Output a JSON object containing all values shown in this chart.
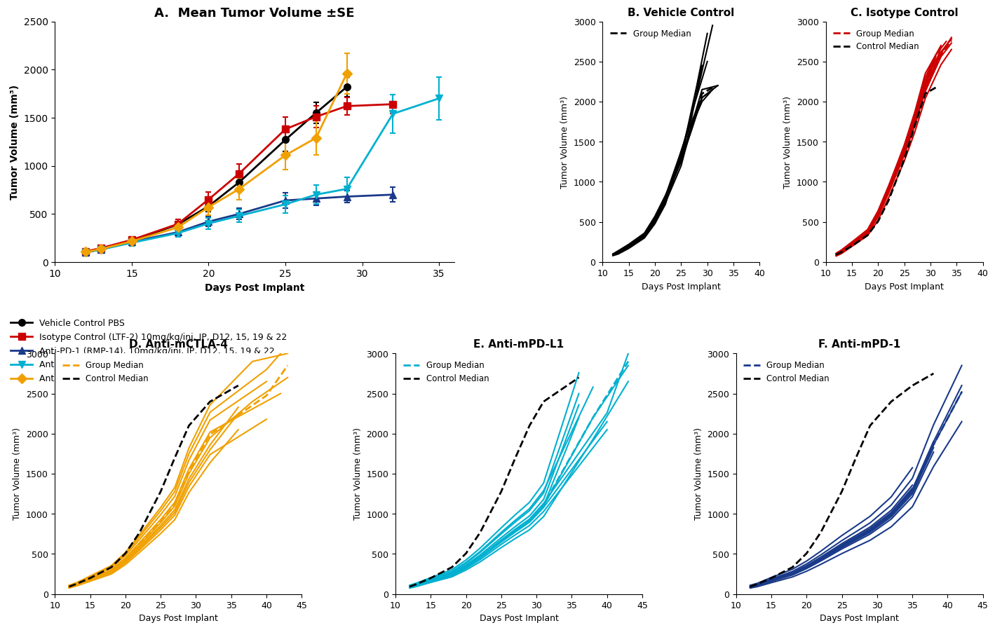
{
  "title_A": "A.  Mean Tumor Volume ±SE",
  "title_B": "B. Vehicle Control",
  "title_C": "C. Isotype Control",
  "title_D": "D. Anti-mCTLA-4",
  "title_E": "E. Anti-mPD-L1",
  "title_F": "F. Anti-mPD-1",
  "xlabel": "Days Post Implant",
  "ylabel": "Tumor Volume (mm³)",
  "colors": {
    "vehicle": "#000000",
    "isotype": "#cc0000",
    "pd1": "#1a3a8a",
    "pdl1": "#00b0d0",
    "ctla4": "#f0a000"
  },
  "mean_days": [
    12,
    13,
    15,
    18,
    20,
    22,
    25,
    27,
    29,
    32,
    35
  ],
  "mean_vehicle": [
    100,
    140,
    220,
    390,
    580,
    830,
    1270,
    1550,
    1820,
    null,
    null
  ],
  "mean_vehicle_se": [
    15,
    20,
    25,
    35,
    60,
    80,
    120,
    110,
    100,
    null,
    null
  ],
  "mean_isotype": [
    110,
    145,
    230,
    395,
    650,
    920,
    1380,
    1510,
    1620,
    1640,
    null
  ],
  "mean_isotype_se": [
    20,
    25,
    30,
    50,
    80,
    100,
    130,
    110,
    90,
    100,
    null
  ],
  "mean_pd1": [
    100,
    130,
    210,
    310,
    420,
    500,
    640,
    660,
    680,
    700,
    null
  ],
  "mean_pd1_se": [
    15,
    20,
    25,
    35,
    50,
    60,
    80,
    70,
    65,
    75,
    null
  ],
  "mean_pdl1": [
    100,
    130,
    200,
    300,
    400,
    480,
    600,
    700,
    760,
    1540,
    1700
  ],
  "mean_pdl1_se": [
    15,
    20,
    30,
    40,
    55,
    65,
    90,
    100,
    120,
    200,
    220
  ],
  "mean_ctla4": [
    105,
    135,
    215,
    360,
    570,
    760,
    1110,
    1290,
    1960,
    null,
    null
  ],
  "mean_ctla4_se": [
    20,
    25,
    35,
    55,
    80,
    110,
    150,
    180,
    210,
    null,
    null
  ],
  "vehicle_individual_x": [
    [
      12,
      13,
      15,
      18,
      20,
      22,
      25,
      27,
      28,
      30
    ],
    [
      12,
      13,
      15,
      18,
      20,
      22,
      25,
      26,
      28,
      31
    ],
    [
      12,
      13,
      15,
      18,
      20,
      22,
      25,
      27,
      29
    ],
    [
      12,
      13,
      15,
      18,
      20,
      22,
      25,
      27,
      29,
      32
    ],
    [
      12,
      13,
      15,
      18,
      20,
      22,
      25,
      27,
      29,
      32
    ],
    [
      12,
      13,
      15,
      18,
      20,
      22,
      25,
      27,
      29,
      31
    ],
    [
      12,
      13,
      15,
      18,
      20,
      22,
      25,
      27,
      30
    ],
    [
      12,
      13,
      15,
      18,
      20,
      22,
      25,
      26,
      27,
      29,
      31
    ],
    [
      12,
      13,
      15,
      18,
      20,
      22,
      24,
      25,
      27,
      29
    ]
  ],
  "vehicle_individual_y": [
    [
      80,
      100,
      170,
      300,
      480,
      750,
      1300,
      1900,
      2200,
      2850
    ],
    [
      90,
      120,
      200,
      340,
      520,
      800,
      1350,
      1600,
      2100,
      2950
    ],
    [
      95,
      130,
      210,
      350,
      550,
      820,
      1380,
      1800,
      2450
    ],
    [
      100,
      140,
      220,
      360,
      570,
      830,
      1250,
      1650,
      2050,
      2200
    ],
    [
      85,
      115,
      185,
      310,
      490,
      740,
      1200,
      1700,
      2150,
      2200
    ],
    [
      90,
      120,
      195,
      320,
      500,
      760,
      1280,
      1650,
      2050,
      2150
    ],
    [
      95,
      130,
      205,
      330,
      510,
      770,
      1300,
      1850,
      2500
    ],
    [
      100,
      135,
      215,
      350,
      530,
      790,
      1260,
      1500,
      1700,
      2000,
      2150
    ],
    [
      88,
      118,
      190,
      310,
      480,
      720,
      1150,
      1380,
      1750,
      2050
    ]
  ],
  "vehicle_median_x": [
    12,
    13,
    15,
    18,
    20,
    22,
    25,
    27,
    29,
    31
  ],
  "vehicle_median_y": [
    92,
    125,
    200,
    335,
    508,
    768,
    1280,
    1700,
    2100,
    2175
  ],
  "isotype_individual_x": [
    [
      12,
      13,
      15,
      18,
      20,
      22,
      25,
      27,
      29,
      32,
      34
    ],
    [
      12,
      13,
      15,
      18,
      20,
      22,
      25,
      27,
      29,
      31,
      33
    ],
    [
      12,
      13,
      15,
      18,
      20,
      22,
      25,
      27,
      29,
      32
    ],
    [
      12,
      13,
      15,
      18,
      20,
      22,
      25,
      27,
      29,
      32,
      34
    ],
    [
      12,
      13,
      15,
      18,
      20,
      22,
      25,
      27,
      29,
      31
    ],
    [
      12,
      13,
      15,
      18,
      20,
      22,
      25,
      27,
      29,
      32,
      34
    ],
    [
      12,
      13,
      15,
      18,
      20,
      22,
      25,
      27,
      30,
      32
    ],
    [
      12,
      13,
      15,
      18,
      20,
      22,
      25,
      27,
      29,
      31,
      33
    ],
    [
      12,
      13,
      15,
      18,
      20,
      22,
      25,
      27,
      29,
      32,
      34
    ],
    [
      12,
      13,
      15,
      18,
      20,
      22,
      25,
      27,
      29,
      31
    ]
  ],
  "isotype_individual_y": [
    [
      80,
      110,
      200,
      360,
      560,
      860,
      1350,
      1720,
      2150,
      2600,
      2800
    ],
    [
      90,
      130,
      230,
      390,
      610,
      910,
      1410,
      1780,
      2220,
      2520,
      2700
    ],
    [
      100,
      145,
      240,
      400,
      630,
      940,
      1460,
      1870,
      2350,
      2700
    ],
    [
      85,
      115,
      210,
      365,
      580,
      880,
      1370,
      1740,
      2180,
      2620,
      2780
    ],
    [
      95,
      135,
      225,
      375,
      595,
      900,
      1400,
      1780,
      2230,
      2560
    ],
    [
      75,
      105,
      195,
      330,
      520,
      800,
      1260,
      1620,
      2040,
      2460,
      2650
    ],
    [
      110,
      150,
      250,
      405,
      640,
      950,
      1440,
      1820,
      2280,
      2680
    ],
    [
      100,
      140,
      235,
      385,
      605,
      915,
      1420,
      1800,
      2250,
      2580,
      2750
    ],
    [
      90,
      125,
      215,
      358,
      572,
      862,
      1330,
      1700,
      2130,
      2560,
      2730
    ],
    [
      105,
      145,
      245,
      398,
      628,
      938,
      1448,
      1838,
      2298,
      2580
    ]
  ],
  "isotype_median_x": [
    12,
    13,
    15,
    18,
    20,
    22,
    25,
    27,
    29,
    32,
    34
  ],
  "isotype_median_y": [
    92,
    133,
    228,
    378,
    598,
    900,
    1395,
    1775,
    2220,
    2590,
    2765
  ],
  "vehicle_ref_iso_x": [
    12,
    13,
    15,
    18,
    20,
    22,
    25,
    27,
    29,
    31
  ],
  "vehicle_ref_iso_y": [
    92,
    125,
    200,
    335,
    508,
    768,
    1280,
    1700,
    2100,
    2175
  ],
  "ctla4_individual_x": [
    [
      12,
      13,
      15,
      18,
      20,
      22,
      25,
      27,
      29,
      32,
      38,
      43
    ],
    [
      12,
      13,
      15,
      18,
      20,
      22,
      25,
      27,
      29,
      32,
      40
    ],
    [
      12,
      13,
      15,
      18,
      20,
      22,
      25,
      27,
      29,
      32,
      36
    ],
    [
      12,
      13,
      15,
      18,
      20,
      22,
      25,
      27,
      29,
      32,
      42
    ],
    [
      12,
      13,
      15,
      18,
      20,
      22,
      25,
      27,
      29,
      32,
      40
    ],
    [
      12,
      13,
      15,
      18,
      20,
      22,
      25,
      27,
      29,
      32,
      38,
      43
    ],
    [
      12,
      13,
      15,
      18,
      20,
      22,
      25,
      27,
      29,
      32,
      36
    ],
    [
      12,
      13,
      15,
      18,
      20,
      22,
      25,
      27,
      29,
      32,
      40,
      43
    ],
    [
      12,
      13,
      15,
      18,
      20,
      22,
      25,
      27,
      29,
      32,
      36
    ]
  ],
  "ctla4_individual_y": [
    [
      90,
      115,
      185,
      290,
      430,
      610,
      890,
      1100,
      1500,
      1950,
      2400,
      2700
    ],
    [
      100,
      130,
      210,
      330,
      480,
      680,
      990,
      1220,
      1670,
      2170,
      2650
    ],
    [
      85,
      110,
      175,
      275,
      405,
      570,
      830,
      1020,
      1390,
      1800,
      2250
    ],
    [
      95,
      120,
      195,
      305,
      450,
      640,
      930,
      1145,
      1560,
      2020,
      2500
    ],
    [
      80,
      105,
      168,
      265,
      390,
      550,
      800,
      985,
      1340,
      1740,
      2180
    ],
    [
      110,
      140,
      225,
      355,
      520,
      740,
      1080,
      1330,
      1820,
      2360,
      2900,
      3000
    ],
    [
      75,
      100,
      160,
      250,
      368,
      520,
      755,
      928,
      1265,
      1638,
      2050
    ],
    [
      105,
      135,
      218,
      342,
      502,
      714,
      1040,
      1280,
      1748,
      2268,
      2800,
      3100
    ],
    [
      88,
      113,
      180,
      283,
      415,
      588,
      856,
      1053,
      1435,
      1860,
      2330
    ]
  ],
  "ctla4_median_x": [
    12,
    13,
    15,
    18,
    20,
    22,
    25,
    27,
    29,
    32,
    40,
    43
  ],
  "ctla4_median_y": [
    92,
    120,
    192,
    300,
    443,
    628,
    916,
    1127,
    1534,
    1990,
    2475,
    2850
  ],
  "vehicle_ref_ctla4_x": [
    12,
    13,
    15,
    18,
    20,
    22,
    25,
    27,
    29,
    32,
    36
  ],
  "vehicle_ref_ctla4_y": [
    92,
    125,
    200,
    335,
    508,
    768,
    1280,
    1700,
    2100,
    2400,
    2600
  ],
  "pdl1_individual_x": [
    [
      12,
      13,
      15,
      18,
      20,
      22,
      25,
      27,
      29,
      31,
      38,
      43
    ],
    [
      12,
      13,
      15,
      18,
      20,
      22,
      25,
      27,
      29,
      31,
      40
    ],
    [
      12,
      13,
      15,
      18,
      20,
      22,
      25,
      27,
      29,
      31,
      36
    ],
    [
      12,
      13,
      15,
      18,
      20,
      22,
      25,
      27,
      29,
      31,
      40
    ],
    [
      12,
      13,
      15,
      18,
      20,
      22,
      25,
      27,
      29,
      31,
      36
    ],
    [
      12,
      13,
      15,
      18,
      20,
      22,
      25,
      27,
      29,
      31,
      38,
      43
    ],
    [
      12,
      13,
      15,
      18,
      20,
      22,
      25,
      27,
      29,
      31,
      36
    ],
    [
      12,
      13,
      15,
      18,
      20,
      22,
      25,
      27,
      29,
      31,
      40,
      43
    ],
    [
      12,
      13,
      15,
      18,
      20,
      22,
      25,
      27,
      29,
      31,
      36
    ],
    [
      12,
      13,
      15,
      18,
      20,
      22,
      25,
      27,
      29,
      31,
      38
    ]
  ],
  "pdl1_individual_y": [
    [
      90,
      110,
      165,
      245,
      340,
      460,
      660,
      790,
      910,
      1100,
      2200,
      2850
    ],
    [
      80,
      100,
      155,
      230,
      320,
      430,
      620,
      740,
      855,
      1030,
      2050
    ],
    [
      100,
      125,
      185,
      275,
      385,
      520,
      750,
      900,
      1040,
      1260,
      2500
    ],
    [
      85,
      108,
      162,
      240,
      335,
      450,
      648,
      775,
      895,
      1080,
      2150
    ],
    [
      95,
      118,
      175,
      260,
      363,
      488,
      704,
      843,
      974,
      1180,
      2360
    ],
    [
      75,
      95,
      145,
      215,
      300,
      402,
      580,
      694,
      801,
      966,
      1930,
      2650
    ],
    [
      110,
      138,
      205,
      305,
      425,
      573,
      827,
      990,
      1144,
      1385,
      2760
    ],
    [
      90,
      112,
      168,
      250,
      348,
      468,
      676,
      810,
      935,
      1130,
      2260,
      3000
    ],
    [
      88,
      110,
      164,
      244,
      340,
      457,
      660,
      790,
      912,
      1102,
      2200
    ],
    [
      102,
      128,
      191,
      284,
      395,
      532,
      770,
      922,
      1065,
      1290,
      2580
    ]
  ],
  "pdl1_median_x": [
    12,
    13,
    15,
    18,
    20,
    22,
    25,
    27,
    29,
    31,
    38,
    43
  ],
  "pdl1_median_y": [
    89,
    111,
    167,
    247,
    344,
    463,
    668,
    800,
    923,
    1115,
    2200,
    2900
  ],
  "vehicle_ref_pdl1_x": [
    12,
    13,
    15,
    18,
    20,
    22,
    25,
    27,
    29,
    31,
    36
  ],
  "vehicle_ref_pdl1_y": [
    92,
    125,
    200,
    335,
    508,
    768,
    1280,
    1700,
    2100,
    2400,
    2700
  ],
  "pd1_individual_x": [
    [
      12,
      13,
      15,
      18,
      20,
      22,
      25,
      27,
      29,
      32,
      35,
      38,
      42
    ],
    [
      12,
      13,
      15,
      18,
      20,
      22,
      25,
      27,
      29,
      32,
      35,
      38
    ],
    [
      12,
      13,
      15,
      18,
      20,
      22,
      25,
      27,
      29,
      32,
      35,
      38,
      42
    ],
    [
      12,
      13,
      15,
      18,
      20,
      22,
      25,
      27,
      29,
      32,
      35,
      38
    ],
    [
      12,
      13,
      15,
      18,
      20,
      22,
      25,
      27,
      29,
      32,
      35
    ],
    [
      12,
      13,
      15,
      18,
      20,
      22,
      25,
      27,
      29,
      32,
      35,
      38,
      42
    ],
    [
      12,
      13,
      15,
      18,
      20,
      22,
      25,
      27,
      29,
      32,
      35
    ],
    [
      12,
      13,
      15,
      18,
      20,
      22,
      25,
      27,
      29,
      32,
      35,
      38
    ],
    [
      12,
      13,
      15,
      18,
      20,
      22,
      25,
      27,
      29,
      32,
      35
    ],
    [
      12,
      13,
      15,
      18,
      20,
      22,
      25,
      27,
      29,
      32,
      35,
      38,
      42
    ]
  ],
  "pd1_individual_y": [
    [
      90,
      110,
      170,
      255,
      340,
      440,
      600,
      700,
      800,
      1000,
      1300,
      1900,
      2600
    ],
    [
      80,
      100,
      158,
      238,
      318,
      412,
      563,
      655,
      748,
      935,
      1213,
      1770
    ],
    [
      100,
      122,
      188,
      282,
      376,
      488,
      667,
      777,
      888,
      1110,
      1443,
      2110,
      2850
    ],
    [
      85,
      105,
      163,
      245,
      326,
      424,
      580,
      675,
      770,
      963,
      1250,
      1825
    ],
    [
      95,
      116,
      178,
      267,
      355,
      460,
      629,
      732,
      836,
      1045,
      1358
    ],
    [
      75,
      92,
      142,
      214,
      285,
      370,
      505,
      588,
      671,
      839,
      1089,
      1590,
      2150
    ],
    [
      110,
      134,
      207,
      310,
      412,
      534,
      730,
      849,
      970,
      1212,
      1575
    ],
    [
      90,
      110,
      170,
      255,
      340,
      441,
      603,
      702,
      802,
      1003,
      1302,
      1902
    ],
    [
      92,
      112,
      173,
      260,
      346,
      449,
      613,
      713,
      815,
      1018,
      1322
    ],
    [
      88,
      108,
      167,
      250,
      333,
      432,
      590,
      687,
      785,
      981,
      1274,
      1860,
      2520
    ]
  ],
  "pd1_median_x": [
    12,
    13,
    15,
    18,
    20,
    22,
    25,
    27,
    29,
    32,
    35,
    38,
    42
  ],
  "pd1_median_y": [
    90,
    111,
    170,
    255,
    340,
    441,
    603,
    702,
    802,
    1003,
    1302,
    1862,
    2520
  ],
  "vehicle_ref_pd1_x": [
    12,
    13,
    15,
    18,
    20,
    22,
    25,
    27,
    29,
    32,
    35,
    38
  ],
  "vehicle_ref_pd1_y": [
    92,
    125,
    200,
    335,
    508,
    768,
    1280,
    1700,
    2100,
    2400,
    2600,
    2750
  ],
  "legend_entries": [
    "Vehicle Control PBS",
    "Isotype Control (LTF-2) 10mg/kg/inj, IP, D12, 15, 19 & 22",
    "Anti-PD-1 (RMP-14), 10mg/kg/inj, IP, D12, 15, 19 & 22",
    "Anti-PD-L1 (10F.9G2), 10mg/kg/inj, IP, D12, 15, 19 & 22",
    "Anti-CTLA-4 (9D9), 10mg/kg/inj, IP, D12, 15, 19 & 22"
  ]
}
